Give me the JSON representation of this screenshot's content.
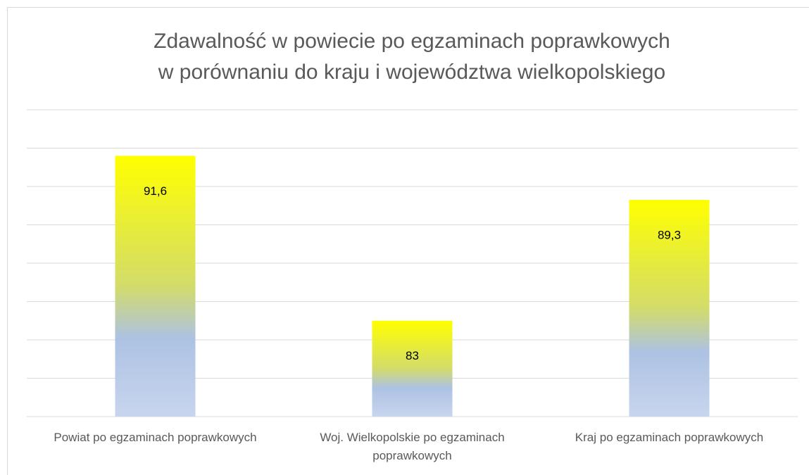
{
  "chart_data": {
    "type": "bar",
    "title_lines": [
      "Zdawalność w powiecie po egzaminach poprawkowych",
      "w porównaniu do kraju i województwa wielkopolskiego"
    ],
    "categories": [
      "Powiat po egzaminach poprawkowych",
      "Woj. Wielkopolskie po egzaminach poprawkowych",
      "Kraj po egzaminach poprawkowych"
    ],
    "values": [
      91.6,
      83,
      89.3
    ],
    "value_labels": [
      "91,6",
      "83",
      "89,3"
    ],
    "gradient": [
      "#ffff00",
      "#adc2e3",
      "#c8d5ee"
    ],
    "ylim": [
      78,
      94
    ],
    "yticks": [
      78,
      80,
      82,
      84,
      86,
      88,
      90,
      92,
      94
    ],
    "grid": true
  }
}
